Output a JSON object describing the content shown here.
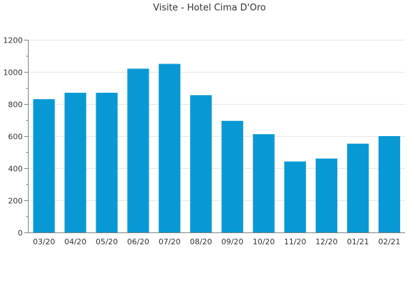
{
  "chart_data": {
    "type": "bar",
    "title": "Visite - Hotel Cima D'Oro",
    "xlabel": "",
    "ylabel": "",
    "categories": [
      "03/20",
      "04/20",
      "05/20",
      "06/20",
      "07/20",
      "08/20",
      "09/20",
      "10/20",
      "11/20",
      "12/20",
      "01/21",
      "02/21"
    ],
    "values": [
      830,
      870,
      870,
      1020,
      1050,
      855,
      695,
      612,
      442,
      460,
      553,
      600
    ],
    "ylim": [
      0,
      1200
    ],
    "yticks": [
      0,
      200,
      400,
      600,
      800,
      1000,
      1200
    ],
    "grid": true,
    "legend": "none",
    "bar_color": "#0899d5"
  }
}
